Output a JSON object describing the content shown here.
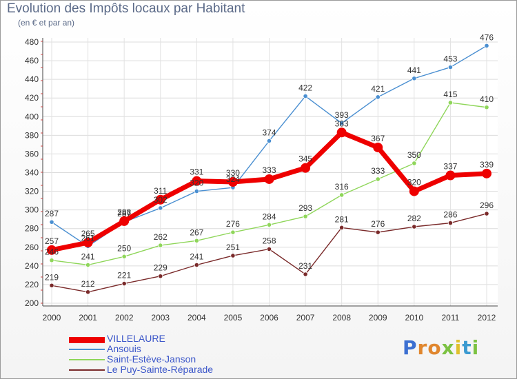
{
  "title": "Evolution des Impôts locaux par Habitant",
  "subtitle": "(en € et par an)",
  "logo": [
    "P",
    "r",
    "o",
    "x",
    "i",
    "t",
    "i"
  ],
  "logo_colors": [
    "#3b6fd1",
    "#e0862e",
    "#e0862e",
    "#7cc242",
    "#e0c02e",
    "#3b9ad1",
    "#7cc242"
  ],
  "chart_data": {
    "type": "line",
    "x": [
      "2000",
      "2001",
      "2002",
      "2003",
      "2004",
      "2005",
      "2006",
      "2007",
      "2008",
      "2009",
      "2010",
      "2011",
      "2012"
    ],
    "ylim": [
      200,
      480
    ],
    "yticks": [
      "200",
      "220",
      "240",
      "260",
      "280",
      "300",
      "320",
      "340",
      "360",
      "380",
      "400",
      "420",
      "440",
      "460",
      "480"
    ],
    "grid": true,
    "legend_position": "bottom-left",
    "series": [
      {
        "name": "Le Puy-Sainte-Réparade",
        "color": "#7a2a2a",
        "values": [
          219,
          212,
          221,
          229,
          241,
          251,
          258,
          231,
          281,
          276,
          282,
          286,
          296
        ],
        "labels": [
          "219",
          "212",
          "221",
          "229",
          "241",
          "251",
          "258",
          "231",
          "281",
          "276",
          "282",
          "286",
          "296"
        ]
      },
      {
        "name": "Saint-Estève-Janson",
        "color": "#8fd65a",
        "values": [
          246,
          241,
          250,
          262,
          267,
          276,
          284,
          293,
          316,
          333,
          350,
          415,
          410
        ],
        "labels": [
          "246",
          "241",
          "250",
          "262",
          "267",
          "276",
          "284",
          "293",
          "316",
          "333",
          "350",
          "415",
          "410"
        ]
      },
      {
        "name": "Ansouis",
        "color": "#4a8fd1",
        "values": [
          287,
          261,
          287,
          302,
          320,
          324,
          374,
          422,
          393,
          421,
          441,
          453,
          476
        ],
        "labels": [
          "287",
          "261",
          "287",
          "302",
          "320",
          "324",
          "374",
          "422",
          "393",
          "421",
          "441",
          "453",
          "476"
        ]
      },
      {
        "name": "VILLELAURE",
        "color": "#ee0000",
        "values": [
          257,
          265,
          288,
          311,
          331,
          330,
          333,
          345,
          383,
          367,
          320,
          337,
          339
        ],
        "labels": [
          "257",
          "265",
          "288",
          "311",
          "331",
          "330",
          "333",
          "345",
          "383",
          "367",
          "320",
          "337",
          "339"
        ]
      }
    ],
    "legend": [
      "VILLELAURE",
      "Ansouis",
      "Saint-Estève-Janson",
      "Le Puy-Sainte-Réparade"
    ]
  }
}
